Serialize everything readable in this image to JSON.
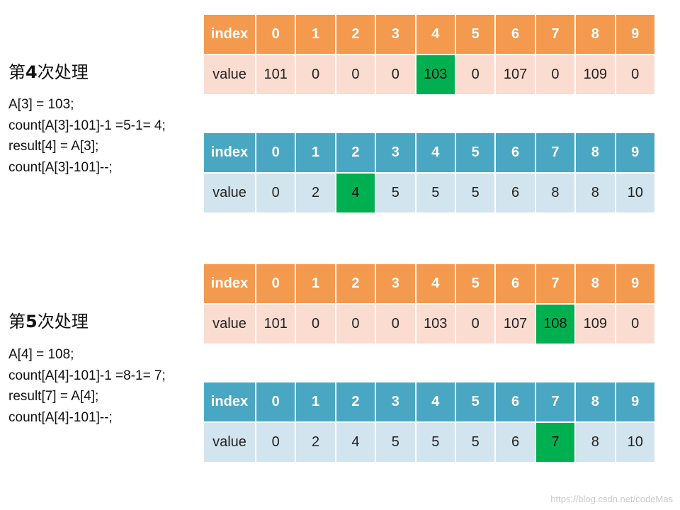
{
  "steps": [
    {
      "title_prefix": "第",
      "title_num": "4",
      "title_suffix": "次处理",
      "code": [
        "A[3] = 103;",
        "count[A[3]-101]-1 =5-1= 4;",
        "result[4] = A[3];",
        "count[A[3]-101]--;"
      ],
      "result_table": {
        "header_label": "index",
        "indices": [
          "0",
          "1",
          "2",
          "3",
          "4",
          "5",
          "6",
          "7",
          "8",
          "9"
        ],
        "value_label": "value",
        "values": [
          "101",
          "0",
          "0",
          "0",
          "103",
          "0",
          "107",
          "0",
          "109",
          "0"
        ],
        "highlight_index": 4,
        "header_color": "#f39a4e",
        "value_color": "#fbdcd0"
      },
      "count_table": {
        "header_label": "index",
        "indices": [
          "0",
          "1",
          "2",
          "3",
          "4",
          "5",
          "6",
          "7",
          "8",
          "9"
        ],
        "value_label": "value",
        "values": [
          "0",
          "2",
          "4",
          "5",
          "5",
          "5",
          "6",
          "8",
          "8",
          "10"
        ],
        "highlight_index": 2,
        "header_color": "#4aa7c3",
        "value_color": "#d2e4ee"
      }
    },
    {
      "title_prefix": "第",
      "title_num": "5",
      "title_suffix": "次处理",
      "code": [
        "A[4] = 108;",
        "count[A[4]-101]-1 =8-1= 7;",
        "result[7] = A[4];",
        "count[A[4]-101]--;"
      ],
      "result_table": {
        "header_label": "index",
        "indices": [
          "0",
          "1",
          "2",
          "3",
          "4",
          "5",
          "6",
          "7",
          "8",
          "9"
        ],
        "value_label": "value",
        "values": [
          "101",
          "0",
          "0",
          "0",
          "103",
          "0",
          "107",
          "108",
          "109",
          "0"
        ],
        "highlight_index": 7,
        "header_color": "#f39a4e",
        "value_color": "#fbdcd0"
      },
      "count_table": {
        "header_label": "index",
        "indices": [
          "0",
          "1",
          "2",
          "3",
          "4",
          "5",
          "6",
          "7",
          "8",
          "9"
        ],
        "value_label": "value",
        "values": [
          "0",
          "2",
          "4",
          "5",
          "5",
          "5",
          "6",
          "7",
          "8",
          "10"
        ],
        "highlight_index": 7,
        "header_color": "#4aa7c3",
        "value_color": "#d2e4ee"
      }
    }
  ],
  "highlight_color": "#00b050",
  "watermark": "https://blog.csdn.net/codeMas"
}
